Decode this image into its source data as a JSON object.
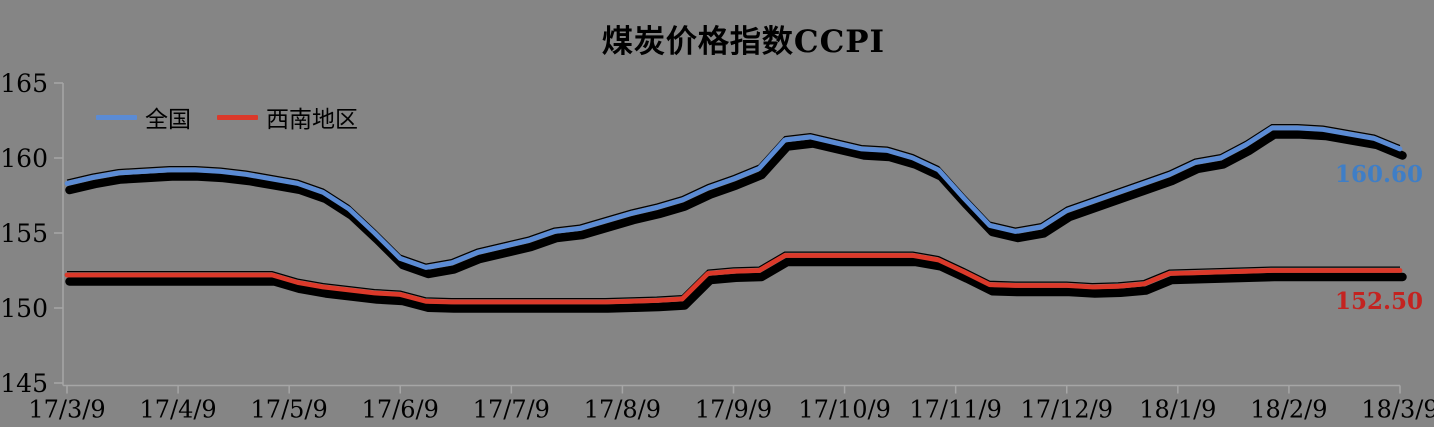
{
  "chart": {
    "background_color": "#858585",
    "axis_color": "#A6A6A6",
    "text_color": "#000000"
  },
  "chart_data": {
    "type": "line",
    "title": "煤炭价格指数CCPI",
    "xlabel": "",
    "ylabel": "",
    "ylim": [
      145,
      165
    ],
    "y_ticks": [
      165,
      160,
      155,
      150,
      145
    ],
    "x_tick_labels": [
      "17/3/9",
      "17/4/9",
      "17/5/9",
      "17/6/9",
      "17/7/9",
      "17/8/9",
      "17/9/9",
      "17/10/9",
      "17/11/9",
      "17/12/9",
      "18/1/9",
      "18/2/9",
      "18/3/9"
    ],
    "grid": false,
    "legend_position": "top-left",
    "series": [
      {
        "name": "全国",
        "color": "#5B8BD4",
        "end_label": "160.60",
        "end_label_color": "#3F7EC6",
        "values": [
          158.3,
          158.7,
          159.0,
          159.1,
          159.2,
          159.2,
          159.1,
          158.9,
          158.6,
          158.3,
          157.7,
          156.6,
          155.0,
          153.3,
          152.7,
          153.0,
          153.7,
          154.1,
          154.5,
          155.1,
          155.3,
          155.8,
          156.3,
          156.7,
          157.2,
          158.0,
          158.6,
          159.3,
          161.2,
          161.4,
          161.0,
          160.6,
          160.5,
          160.0,
          159.2,
          157.3,
          155.5,
          155.1,
          155.4,
          156.5,
          157.1,
          157.7,
          158.3,
          158.9,
          159.7,
          160.0,
          160.9,
          162.0,
          162.0,
          161.9,
          161.6,
          161.3,
          160.6
        ]
      },
      {
        "name": "西南地区",
        "color": "#DB392A",
        "end_label": "152.50",
        "end_label_color": "#C42320",
        "values": [
          152.2,
          152.2,
          152.2,
          152.2,
          152.2,
          152.2,
          152.2,
          152.2,
          152.2,
          151.7,
          151.4,
          151.2,
          151.0,
          150.9,
          150.45,
          150.4,
          150.4,
          150.4,
          150.4,
          150.4,
          150.4,
          150.4,
          150.45,
          150.5,
          150.6,
          152.3,
          152.45,
          152.5,
          153.5,
          153.5,
          153.5,
          153.5,
          153.5,
          153.5,
          153.2,
          152.4,
          151.55,
          151.5,
          151.5,
          151.5,
          151.4,
          151.45,
          151.6,
          152.3,
          152.35,
          152.4,
          152.45,
          152.5,
          152.5,
          152.5,
          152.5,
          152.5,
          152.5
        ]
      }
    ]
  }
}
